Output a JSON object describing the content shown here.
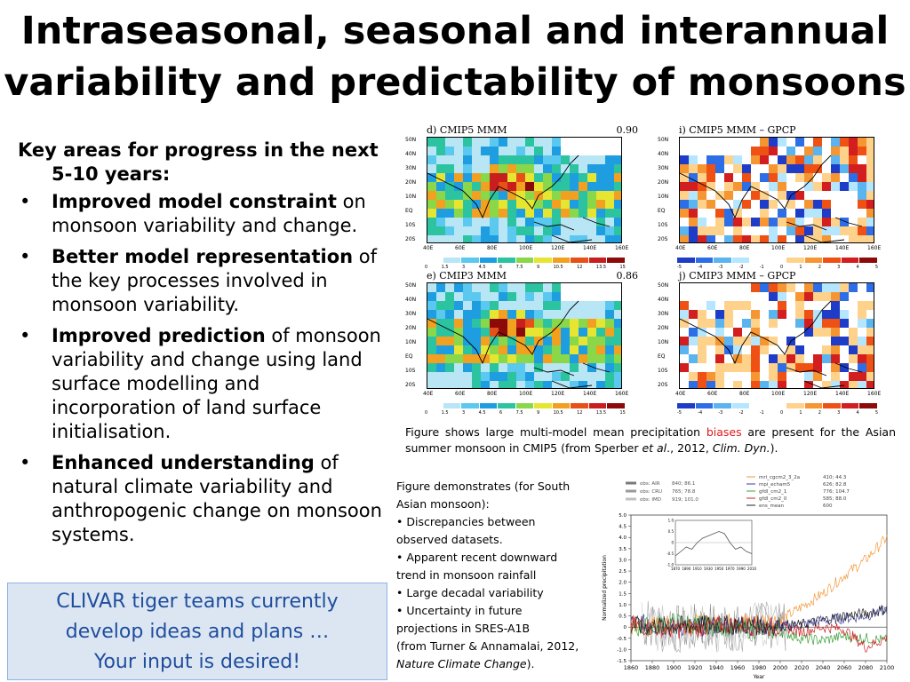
{
  "slide": {
    "title_line1": "Intraseasonal, seasonal and interannual",
    "title_line2": "variability and predictability of monsoons"
  },
  "left": {
    "heading_line1": "Key areas for progress in the next",
    "heading_line2": "5-10 years:",
    "bullets": [
      {
        "bold": "Improved model constraint",
        "rest": " on monsoon variability and change."
      },
      {
        "bold": "Better model representation",
        "rest": " of the key processes involved in monsoon variability."
      },
      {
        "bold": "Improved prediction",
        "rest": " of monsoon variability and change using land surface modelling and incorporation of land surface initialisation."
      },
      {
        "bold": "Enhanced understanding",
        "rest": " of natural climate variability and anthropogenic change on monsoon systems."
      }
    ]
  },
  "callout": {
    "line1": "CLIVAR tiger teams currently",
    "line2": "develop ideas and plans …",
    "line3": "Your input is desired!"
  },
  "maps": {
    "panels": [
      {
        "title": "d) CMIP5 MMM",
        "corr": "0.90"
      },
      {
        "title": "i) CMIP5 MMM – GPCP",
        "corr": ""
      },
      {
        "title": "e) CMIP3 MMM",
        "corr": "0.86"
      },
      {
        "title": "j) CMIP3 MMM – GPCP",
        "corr": ""
      }
    ],
    "lat_labels": [
      "50N",
      "40N",
      "30N",
      "20N",
      "10N",
      "EQ",
      "10S",
      "20S"
    ],
    "lon_labels": [
      "40E",
      "60E",
      "80E",
      "100E",
      "120E",
      "140E",
      "160E"
    ],
    "precip_ticks": [
      "0",
      "1.5",
      "3",
      "4.5",
      "6",
      "7.5",
      "9",
      "10.5",
      "12",
      "13.5",
      "15"
    ],
    "bias_ticks": [
      "-5",
      "-4",
      "-3",
      "-2",
      "-1",
      "0",
      "1",
      "2",
      "3",
      "4",
      "5"
    ],
    "colors": {
      "precip": [
        "#ffffff",
        "#b8e6f5",
        "#5bc8f0",
        "#1e9ee0",
        "#2cc4a0",
        "#8ad84a",
        "#e6e632",
        "#f2a020",
        "#e85018",
        "#c81e1e",
        "#8c0a0a"
      ],
      "bias": [
        "#1e3cc8",
        "#2d6ee6",
        "#5ab4f0",
        "#b4e6ff",
        "#ffffff",
        "#ffffff",
        "#ffd28c",
        "#f59632",
        "#ef5014",
        "#d21e1e",
        "#8c0a0a"
      ]
    }
  },
  "caption1": {
    "part1": "Figure shows large multi-model mean precipitation ",
    "red": "biases",
    "part2": " are present for the Asian summer monsoon in CMIP5 (from Sperber ",
    "etal": "et al",
    "part3": "., 2012, ",
    "journal": "Clim. Dyn.",
    "part4": ")."
  },
  "caption2": {
    "intro": "Figure demonstrates (for South Asian monsoon):",
    "items": [
      "• Discrepancies between observed datasets.",
      "• Apparent recent downward trend in monsoon rainfall",
      "• Large decadal variability",
      "• Uncertainty in future projections in SRES-A1B"
    ],
    "ref_prefix": "(from Turner & Annamalai, 2012, ",
    "ref_journal": "Nature Climate Change",
    "ref_suffix": ")."
  },
  "chart_data": {
    "type": "line",
    "xlabel": "Year",
    "ylabel": "Normalized precipitation",
    "xlim": [
      1860,
      2100
    ],
    "ylim": [
      -1.5,
      5.0
    ],
    "x_ticks": [
      "1860",
      "1880",
      "1900",
      "1920",
      "1940",
      "1960",
      "1980",
      "2000",
      "2020",
      "2040",
      "2060",
      "2080",
      "2100"
    ],
    "y_ticks": [
      "-1.5",
      "-1.0",
      "-0.5",
      "0",
      "0.5",
      "1.0",
      "1.5",
      "2.0",
      "2.5",
      "3.0",
      "3.5",
      "4.0",
      "4.5",
      "5.0"
    ],
    "legend_obs": [
      {
        "name": "obs: AIR",
        "stats": "840; 86.1",
        "color": "#7a7a7a"
      },
      {
        "name": "obs: CRU",
        "stats": "765; 78.8",
        "color": "#9a9a9a"
      },
      {
        "name": "obs: IMD",
        "stats": "919; 101.0",
        "color": "#c0c0c0"
      }
    ],
    "legend_models": [
      {
        "name": "mri_cgcm2_3_2a",
        "stats": "410; 44.3",
        "color": "#f39a3c"
      },
      {
        "name": "mpi_echam5",
        "stats": "626; 82.8",
        "color": "#3a3aa0"
      },
      {
        "name": "gfdl_cm2_1",
        "stats": "776; 104.7",
        "color": "#3aa03a"
      },
      {
        "name": "gfdl_cm2_0",
        "stats": "585; 88.0",
        "color": "#d02020"
      },
      {
        "name": "ens_mean",
        "stats": "600",
        "color": "#202020"
      }
    ],
    "series": [
      {
        "name": "mri_cgcm2_3_2a",
        "x": [
          1860,
          1900,
          1950,
          2000,
          2020,
          2040,
          2060,
          2080,
          2100
        ],
        "values": [
          0.0,
          0.1,
          0.2,
          0.3,
          0.9,
          1.5,
          2.3,
          3.0,
          4.0
        ]
      },
      {
        "name": "mpi_echam5",
        "x": [
          1860,
          1900,
          1950,
          2000,
          2020,
          2040,
          2060,
          2080,
          2100
        ],
        "values": [
          0.2,
          0.0,
          0.1,
          0.0,
          0.1,
          0.3,
          0.4,
          0.5,
          0.8
        ]
      },
      {
        "name": "gfdl_cm2_1",
        "x": [
          1860,
          1900,
          1950,
          2000,
          2020,
          2040,
          2060,
          2080,
          2100
        ],
        "values": [
          -0.1,
          0.2,
          0.0,
          -0.2,
          -0.5,
          -0.6,
          -0.4,
          -0.5,
          -0.6
        ]
      },
      {
        "name": "gfdl_cm2_0",
        "x": [
          1860,
          1900,
          1950,
          2000,
          2020,
          2040,
          2060,
          2080,
          2100
        ],
        "values": [
          0.1,
          -0.1,
          0.1,
          0.0,
          -0.2,
          0.0,
          -0.1,
          -0.9,
          -0.5
        ]
      },
      {
        "name": "ens_mean",
        "x": [
          1860,
          1900,
          1950,
          2000,
          2020,
          2040,
          2060,
          2080,
          2100
        ],
        "values": [
          0.05,
          0.05,
          0.1,
          0.05,
          0.1,
          0.3,
          0.5,
          0.6,
          0.8
        ]
      }
    ],
    "inset": {
      "xlim": [
        1870,
        2010
      ],
      "ylim": [
        -1.0,
        1.0
      ],
      "x_ticks": [
        "1870",
        "1890",
        "1910",
        "1930",
        "1950",
        "1970",
        "1990",
        "2010"
      ],
      "y_ticks": [
        "-1.0",
        "-0.5",
        "0",
        "0.5",
        "1.0"
      ],
      "x": [
        1870,
        1880,
        1890,
        1900,
        1910,
        1920,
        1930,
        1940,
        1950,
        1960,
        1970,
        1980,
        1990,
        2000,
        2010
      ],
      "values": [
        -0.6,
        -0.4,
        -0.2,
        -0.3,
        0.0,
        0.2,
        0.3,
        0.4,
        0.5,
        0.4,
        0.0,
        -0.3,
        -0.2,
        -0.4,
        -0.5
      ]
    }
  }
}
